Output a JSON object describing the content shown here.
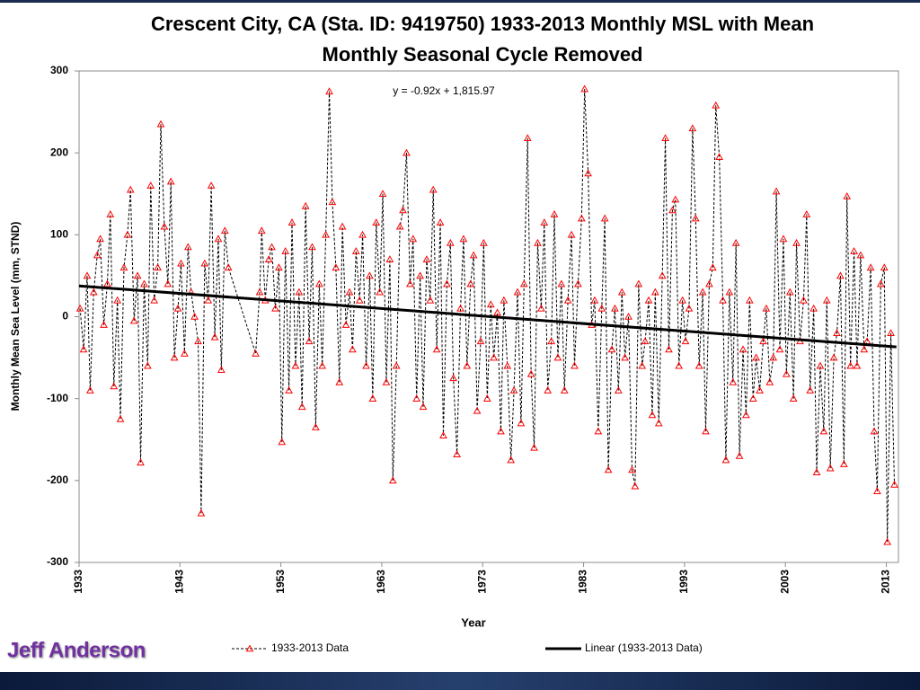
{
  "chart_data": {
    "type": "line",
    "title": [
      "Crescent City, CA (Sta. ID: 9419750) 1933-2013  Monthly MSL with Mean",
      "Monthly Seasonal Cycle Removed"
    ],
    "x_label": "Year",
    "y_label": "Monthly Mean Sea Level (mm, STND)",
    "annotation": "y = -0.92x + 1,815.97",
    "author": "Jeff Anderson",
    "xlim": [
      1933,
      2014.2
    ],
    "ylim": [
      -300,
      300
    ],
    "xticks": [
      1933,
      1943,
      1953,
      1963,
      1973,
      1983,
      1993,
      2003,
      2013
    ],
    "yticks": [
      -300,
      -200,
      -100,
      0,
      100,
      200,
      300
    ],
    "legend": "bottom",
    "series": [
      {
        "name": "1933-2013 Data",
        "color": "#ff0000",
        "line_color": "#000000",
        "dashed": true,
        "marker": "triangle",
        "x": [
          1933.1,
          1933.45,
          1933.8,
          1934.1,
          1934.45,
          1934.8,
          1935.1,
          1935.45,
          1935.8,
          1936.1,
          1936.45,
          1936.8,
          1937.1,
          1937.45,
          1937.8,
          1938.1,
          1938.45,
          1938.8,
          1939.1,
          1939.45,
          1939.8,
          1940.1,
          1940.45,
          1940.8,
          1941.1,
          1941.45,
          1941.8,
          1942.1,
          1942.45,
          1942.8,
          1943.1,
          1943.45,
          1943.8,
          1944.1,
          1944.45,
          1944.8,
          1945.1,
          1945.45,
          1945.8,
          1946.1,
          1946.45,
          1946.8,
          1947.1,
          1947.45,
          1947.8,
          1950.5,
          1950.9,
          1951.1,
          1951.45,
          1951.8,
          1952.1,
          1952.45,
          1952.8,
          1953.1,
          1953.45,
          1953.8,
          1954.1,
          1954.45,
          1954.8,
          1955.1,
          1955.45,
          1955.8,
          1956.1,
          1956.45,
          1956.8,
          1957.1,
          1957.45,
          1957.8,
          1958.1,
          1958.45,
          1958.8,
          1959.1,
          1959.45,
          1959.8,
          1960.1,
          1960.45,
          1960.8,
          1961.1,
          1961.45,
          1961.8,
          1962.1,
          1962.45,
          1962.8,
          1963.1,
          1963.45,
          1963.8,
          1964.1,
          1964.45,
          1964.8,
          1965.1,
          1965.45,
          1965.8,
          1966.1,
          1966.45,
          1966.8,
          1967.1,
          1967.45,
          1967.8,
          1968.1,
          1968.45,
          1968.8,
          1969.1,
          1969.45,
          1969.8,
          1970.1,
          1970.45,
          1970.8,
          1971.1,
          1971.45,
          1971.8,
          1972.1,
          1972.45,
          1972.8,
          1973.1,
          1973.45,
          1973.8,
          1974.1,
          1974.45,
          1974.8,
          1975.1,
          1975.45,
          1975.8,
          1976.1,
          1976.45,
          1976.8,
          1977.1,
          1977.45,
          1977.8,
          1978.1,
          1978.45,
          1978.8,
          1979.1,
          1979.45,
          1979.8,
          1980.1,
          1980.45,
          1980.8,
          1981.1,
          1981.45,
          1981.8,
          1982.1,
          1982.45,
          1982.8,
          1983.1,
          1983.45,
          1983.8,
          1984.1,
          1984.45,
          1984.8,
          1985.1,
          1985.45,
          1985.8,
          1986.1,
          1986.45,
          1986.8,
          1987.1,
          1987.45,
          1987.8,
          1988.1,
          1988.45,
          1988.8,
          1989.1,
          1989.45,
          1989.8,
          1990.1,
          1990.45,
          1990.8,
          1991.1,
          1991.45,
          1991.8,
          1992.1,
          1992.45,
          1992.8,
          1993.1,
          1993.45,
          1993.8,
          1994.1,
          1994.45,
          1994.8,
          1995.1,
          1995.45,
          1995.8,
          1996.1,
          1996.45,
          1996.8,
          1997.1,
          1997.45,
          1997.8,
          1998.1,
          1998.45,
          1998.8,
          1999.1,
          1999.45,
          1999.8,
          2000.1,
          2000.45,
          2000.8,
          2001.1,
          2001.45,
          2001.8,
          2002.1,
          2002.45,
          2002.8,
          2003.1,
          2003.45,
          2003.8,
          2004.1,
          2004.45,
          2004.8,
          2005.1,
          2005.45,
          2005.8,
          2006.1,
          2006.45,
          2006.8,
          2007.1,
          2007.45,
          2007.8,
          2008.1,
          2008.45,
          2008.8,
          2009.1,
          2009.45,
          2009.8,
          2010.1,
          2010.45,
          2010.8,
          2011.1,
          2011.45,
          2011.8,
          2012.1,
          2012.45,
          2012.8,
          2013.1,
          2013.45,
          2013.8
        ],
        "values": [
          10,
          -40,
          50,
          -90,
          30,
          75,
          95,
          -10,
          40,
          125,
          -85,
          20,
          -125,
          60,
          100,
          155,
          -5,
          50,
          -178,
          40,
          -60,
          160,
          20,
          60,
          235,
          110,
          40,
          165,
          -50,
          10,
          65,
          -45,
          85,
          30,
          0,
          -30,
          -240,
          65,
          20,
          160,
          -25,
          95,
          -65,
          105,
          60,
          -45,
          30,
          105,
          20,
          70,
          85,
          10,
          60,
          -153,
          80,
          -90,
          115,
          -60,
          30,
          -110,
          135,
          -30,
          85,
          -135,
          40,
          -60,
          100,
          275,
          140,
          60,
          -80,
          110,
          -10,
          30,
          -40,
          80,
          20,
          100,
          -60,
          50,
          -100,
          115,
          30,
          150,
          -80,
          70,
          -200,
          -60,
          110,
          130,
          200,
          40,
          95,
          -100,
          50,
          -110,
          70,
          20,
          155,
          -40,
          115,
          -145,
          40,
          90,
          -75,
          -168,
          10,
          95,
          -60,
          40,
          75,
          -115,
          -30,
          90,
          -100,
          15,
          -50,
          5,
          -140,
          20,
          -60,
          -175,
          -90,
          30,
          -130,
          40,
          218,
          -70,
          -160,
          90,
          10,
          115,
          -90,
          -30,
          125,
          -50,
          40,
          -90,
          20,
          100,
          -60,
          40,
          120,
          278,
          175,
          -10,
          20,
          -140,
          10,
          120,
          -187,
          -40,
          10,
          -90,
          30,
          -50,
          0,
          -187,
          -207,
          40,
          -60,
          -30,
          20,
          -120,
          30,
          -130,
          50,
          218,
          -40,
          130,
          143,
          -60,
          20,
          -30,
          10,
          230,
          120,
          -60,
          30,
          -140,
          40,
          60,
          258,
          195,
          20,
          -175,
          30,
          -80,
          90,
          -170,
          -40,
          -120,
          20,
          -100,
          -50,
          -90,
          -30,
          10,
          -80,
          -50,
          153,
          -40,
          95,
          -70,
          30,
          -100,
          90,
          -30,
          20,
          125,
          -90,
          10,
          -190,
          -60,
          -140,
          20,
          -185,
          -50,
          -20,
          50,
          -180,
          147,
          -60,
          80,
          -60,
          75,
          -40,
          -30,
          60,
          -140,
          -213,
          40,
          60,
          -275,
          -20,
          -205
        ]
      },
      {
        "name": "Linear (1933-2013 Data)",
        "color": "#000000",
        "dashed": false,
        "x": [
          1933,
          2014
        ],
        "values": [
          37.6,
          -36.9
        ]
      }
    ]
  }
}
